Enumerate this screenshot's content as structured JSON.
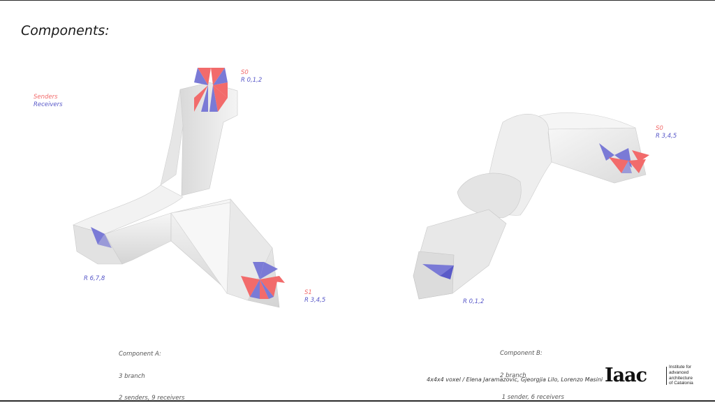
{
  "slide": {
    "title": "Components:"
  },
  "legend": {
    "senders": "Senders",
    "receivers": "Receivers",
    "colors": {
      "sender": "#f26b6b",
      "receiver": "#5656c8"
    }
  },
  "component_a": {
    "labels": {
      "top_s": "S0",
      "top_r": "R 0,1,2",
      "right_s": "S1",
      "right_r": "R 3,4,5",
      "left_r": "R 6,7,8"
    },
    "caption": {
      "line1": "Component A:",
      "line2": "3 branch",
      "line3": "2 senders, 9 receivers"
    }
  },
  "component_b": {
    "labels": {
      "right_s": "S0",
      "right_r": "R 3,4,5",
      "left_r": "R 0,1,2"
    },
    "caption": {
      "line1": "Component B:",
      "line2": "2 branch",
      "line3": " 1 sender, 6 receivers"
    }
  },
  "footer": {
    "credits": "4x4x4 voxel / Elena Jaramazovic, Gjeorgjia Lilo, Lorenzo Masini",
    "logo_mark": "Iaac",
    "logo_text": [
      "Institute for",
      "advanced",
      "architecture",
      "of Catalonia"
    ]
  }
}
